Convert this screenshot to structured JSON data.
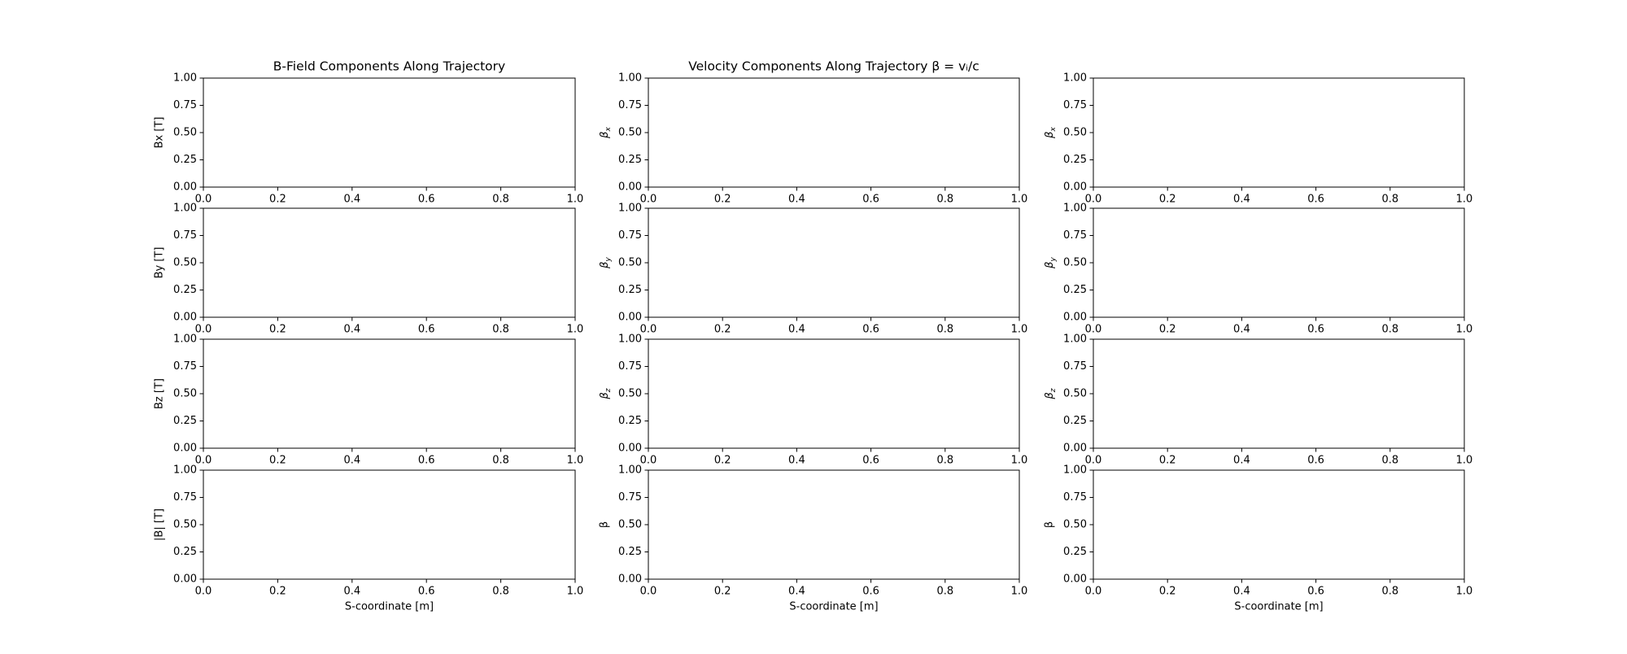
{
  "chart_data": [
    {
      "type": "line",
      "title": "B-Field Components Along Trajectory",
      "ylabel": "Bx [T]",
      "xlim": [
        0,
        1
      ],
      "ylim": [
        0,
        1
      ],
      "xticks": [
        {
          "value": 0,
          "label": "0.0"
        },
        {
          "value": 0.2,
          "label": "0.2"
        },
        {
          "value": 0.4,
          "label": "0.4"
        },
        {
          "value": 0.6,
          "label": "0.6"
        },
        {
          "value": 0.8,
          "label": "0.8"
        },
        {
          "value": 1,
          "label": "1.0"
        }
      ],
      "yticks": [
        {
          "value": 0,
          "label": "0.00"
        },
        {
          "value": 0.25,
          "label": "0.25"
        },
        {
          "value": 0.5,
          "label": "0.50"
        },
        {
          "value": 0.75,
          "label": "0.75"
        },
        {
          "value": 1,
          "label": "1.00"
        }
      ]
    },
    {
      "type": "line",
      "title": "Velocity Components Along Trajectory β = vᵢ/c",
      "ylabel": [
        "β",
        "x"
      ],
      "xlim": [
        0,
        1
      ],
      "ylim": [
        0,
        1
      ],
      "xticks": [
        {
          "value": 0,
          "label": "0.0"
        },
        {
          "value": 0.2,
          "label": "0.2"
        },
        {
          "value": 0.4,
          "label": "0.4"
        },
        {
          "value": 0.6,
          "label": "0.6"
        },
        {
          "value": 0.8,
          "label": "0.8"
        },
        {
          "value": 1,
          "label": "1.0"
        }
      ],
      "yticks": [
        {
          "value": 0,
          "label": "0.00"
        },
        {
          "value": 0.25,
          "label": "0.25"
        },
        {
          "value": 0.5,
          "label": "0.50"
        },
        {
          "value": 0.75,
          "label": "0.75"
        },
        {
          "value": 1,
          "label": "1.00"
        }
      ]
    },
    {
      "type": "line",
      "ylabel": [
        "β",
        "x"
      ],
      "xlim": [
        0,
        1
      ],
      "ylim": [
        0,
        1
      ],
      "xticks": [
        {
          "value": 0,
          "label": "0.0"
        },
        {
          "value": 0.2,
          "label": "0.2"
        },
        {
          "value": 0.4,
          "label": "0.4"
        },
        {
          "value": 0.6,
          "label": "0.6"
        },
        {
          "value": 0.8,
          "label": "0.8"
        },
        {
          "value": 1,
          "label": "1.0"
        }
      ],
      "yticks": [
        {
          "value": 0,
          "label": "0.00"
        },
        {
          "value": 0.25,
          "label": "0.25"
        },
        {
          "value": 0.5,
          "label": "0.50"
        },
        {
          "value": 0.75,
          "label": "0.75"
        },
        {
          "value": 1,
          "label": "1.00"
        }
      ]
    },
    {
      "type": "line",
      "ylabel": "By [T]",
      "xlim": [
        0,
        1
      ],
      "ylim": [
        0,
        1
      ],
      "xticks": [
        {
          "value": 0,
          "label": "0.0"
        },
        {
          "value": 0.2,
          "label": "0.2"
        },
        {
          "value": 0.4,
          "label": "0.4"
        },
        {
          "value": 0.6,
          "label": "0.6"
        },
        {
          "value": 0.8,
          "label": "0.8"
        },
        {
          "value": 1,
          "label": "1.0"
        }
      ],
      "yticks": [
        {
          "value": 0,
          "label": "0.00"
        },
        {
          "value": 0.25,
          "label": "0.25"
        },
        {
          "value": 0.5,
          "label": "0.50"
        },
        {
          "value": 0.75,
          "label": "0.75"
        },
        {
          "value": 1,
          "label": "1.00"
        }
      ]
    },
    {
      "type": "line",
      "ylabel": [
        "β",
        "y"
      ],
      "xlim": [
        0,
        1
      ],
      "ylim": [
        0,
        1
      ],
      "xticks": [
        {
          "value": 0,
          "label": "0.0"
        },
        {
          "value": 0.2,
          "label": "0.2"
        },
        {
          "value": 0.4,
          "label": "0.4"
        },
        {
          "value": 0.6,
          "label": "0.6"
        },
        {
          "value": 0.8,
          "label": "0.8"
        },
        {
          "value": 1,
          "label": "1.0"
        }
      ],
      "yticks": [
        {
          "value": 0,
          "label": "0.00"
        },
        {
          "value": 0.25,
          "label": "0.25"
        },
        {
          "value": 0.5,
          "label": "0.50"
        },
        {
          "value": 0.75,
          "label": "0.75"
        },
        {
          "value": 1,
          "label": "1.00"
        }
      ]
    },
    {
      "type": "line",
      "ylabel": [
        "β",
        "y"
      ],
      "xlim": [
        0,
        1
      ],
      "ylim": [
        0,
        1
      ],
      "xticks": [
        {
          "value": 0,
          "label": "0.0"
        },
        {
          "value": 0.2,
          "label": "0.2"
        },
        {
          "value": 0.4,
          "label": "0.4"
        },
        {
          "value": 0.6,
          "label": "0.6"
        },
        {
          "value": 0.8,
          "label": "0.8"
        },
        {
          "value": 1,
          "label": "1.0"
        }
      ],
      "yticks": [
        {
          "value": 0,
          "label": "0.00"
        },
        {
          "value": 0.25,
          "label": "0.25"
        },
        {
          "value": 0.5,
          "label": "0.50"
        },
        {
          "value": 0.75,
          "label": "0.75"
        },
        {
          "value": 1,
          "label": "1.00"
        }
      ]
    },
    {
      "type": "line",
      "ylabel": "Bz [T]",
      "xlim": [
        0,
        1
      ],
      "ylim": [
        0,
        1
      ],
      "xticks": [
        {
          "value": 0,
          "label": "0.0"
        },
        {
          "value": 0.2,
          "label": "0.2"
        },
        {
          "value": 0.4,
          "label": "0.4"
        },
        {
          "value": 0.6,
          "label": "0.6"
        },
        {
          "value": 0.8,
          "label": "0.8"
        },
        {
          "value": 1,
          "label": "1.0"
        }
      ],
      "yticks": [
        {
          "value": 0,
          "label": "0.00"
        },
        {
          "value": 0.25,
          "label": "0.25"
        },
        {
          "value": 0.5,
          "label": "0.50"
        },
        {
          "value": 0.75,
          "label": "0.75"
        },
        {
          "value": 1,
          "label": "1.00"
        }
      ]
    },
    {
      "type": "line",
      "ylabel": [
        "β",
        "z"
      ],
      "xlim": [
        0,
        1
      ],
      "ylim": [
        0,
        1
      ],
      "xticks": [
        {
          "value": 0,
          "label": "0.0"
        },
        {
          "value": 0.2,
          "label": "0.2"
        },
        {
          "value": 0.4,
          "label": "0.4"
        },
        {
          "value": 0.6,
          "label": "0.6"
        },
        {
          "value": 0.8,
          "label": "0.8"
        },
        {
          "value": 1,
          "label": "1.0"
        }
      ],
      "yticks": [
        {
          "value": 0,
          "label": "0.00"
        },
        {
          "value": 0.25,
          "label": "0.25"
        },
        {
          "value": 0.5,
          "label": "0.50"
        },
        {
          "value": 0.75,
          "label": "0.75"
        },
        {
          "value": 1,
          "label": "1.00"
        }
      ]
    },
    {
      "type": "line",
      "ylabel": [
        "β",
        "z"
      ],
      "xlim": [
        0,
        1
      ],
      "ylim": [
        0,
        1
      ],
      "xticks": [
        {
          "value": 0,
          "label": "0.0"
        },
        {
          "value": 0.2,
          "label": "0.2"
        },
        {
          "value": 0.4,
          "label": "0.4"
        },
        {
          "value": 0.6,
          "label": "0.6"
        },
        {
          "value": 0.8,
          "label": "0.8"
        },
        {
          "value": 1,
          "label": "1.0"
        }
      ],
      "yticks": [
        {
          "value": 0,
          "label": "0.00"
        },
        {
          "value": 0.25,
          "label": "0.25"
        },
        {
          "value": 0.5,
          "label": "0.50"
        },
        {
          "value": 0.75,
          "label": "0.75"
        },
        {
          "value": 1,
          "label": "1.00"
        }
      ]
    },
    {
      "type": "line",
      "ylabel": "|B| [T]",
      "xlabel": "S-coordinate [m]",
      "xlim": [
        0,
        1
      ],
      "ylim": [
        0,
        1
      ],
      "xticks": [
        {
          "value": 0,
          "label": "0.0"
        },
        {
          "value": 0.2,
          "label": "0.2"
        },
        {
          "value": 0.4,
          "label": "0.4"
        },
        {
          "value": 0.6,
          "label": "0.6"
        },
        {
          "value": 0.8,
          "label": "0.8"
        },
        {
          "value": 1,
          "label": "1.0"
        }
      ],
      "yticks": [
        {
          "value": 0,
          "label": "0.00"
        },
        {
          "value": 0.25,
          "label": "0.25"
        },
        {
          "value": 0.5,
          "label": "0.50"
        },
        {
          "value": 0.75,
          "label": "0.75"
        },
        {
          "value": 1,
          "label": "1.00"
        }
      ]
    },
    {
      "type": "line",
      "ylabel": "β",
      "xlabel": "S-coordinate [m]",
      "xlim": [
        0,
        1
      ],
      "ylim": [
        0,
        1
      ],
      "xticks": [
        {
          "value": 0,
          "label": "0.0"
        },
        {
          "value": 0.2,
          "label": "0.2"
        },
        {
          "value": 0.4,
          "label": "0.4"
        },
        {
          "value": 0.6,
          "label": "0.6"
        },
        {
          "value": 0.8,
          "label": "0.8"
        },
        {
          "value": 1,
          "label": "1.0"
        }
      ],
      "yticks": [
        {
          "value": 0,
          "label": "0.00"
        },
        {
          "value": 0.25,
          "label": "0.25"
        },
        {
          "value": 0.5,
          "label": "0.50"
        },
        {
          "value": 0.75,
          "label": "0.75"
        },
        {
          "value": 1,
          "label": "1.00"
        }
      ]
    },
    {
      "type": "line",
      "ylabel": "β",
      "xlabel": "S-coordinate [m]",
      "xlim": [
        0,
        1
      ],
      "ylim": [
        0,
        1
      ],
      "xticks": [
        {
          "value": 0,
          "label": "0.0"
        },
        {
          "value": 0.2,
          "label": "0.2"
        },
        {
          "value": 0.4,
          "label": "0.4"
        },
        {
          "value": 0.6,
          "label": "0.6"
        },
        {
          "value": 0.8,
          "label": "0.8"
        },
        {
          "value": 1,
          "label": "1.0"
        }
      ],
      "yticks": [
        {
          "value": 0,
          "label": "0.00"
        },
        {
          "value": 0.25,
          "label": "0.25"
        },
        {
          "value": 0.5,
          "label": "0.50"
        },
        {
          "value": 0.75,
          "label": "0.75"
        },
        {
          "value": 1,
          "label": "1.00"
        }
      ]
    }
  ]
}
